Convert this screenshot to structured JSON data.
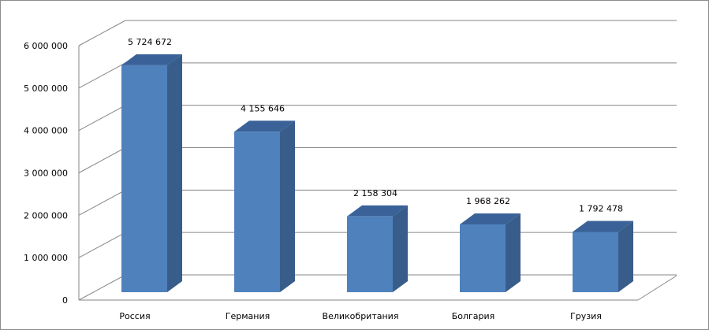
{
  "chart_data": {
    "type": "bar",
    "title": "",
    "xlabel": "",
    "ylabel": "",
    "categories": [
      "Россия",
      "Германия",
      "Великобритания",
      "Болгария",
      "Грузия"
    ],
    "values": [
      5724672,
      4155646,
      2158304,
      1968262,
      1792478
    ],
    "value_labels": [
      "5 724 672",
      "4 155 646",
      "2 158 304",
      "1 968 262",
      "1 792 478"
    ],
    "ylim": [
      0,
      6000000
    ],
    "yticks": [
      0,
      1000000,
      2000000,
      3000000,
      4000000,
      5000000,
      6000000
    ],
    "ytick_labels": [
      "0",
      "1 000 000",
      "2 000 000",
      "3 000 000",
      "4 000 000",
      "5 000 000",
      "6 000 000"
    ],
    "grid": true,
    "legend": "none",
    "style": "3d-column",
    "colors": {
      "bar_front": "#4f81bd",
      "bar_side": "#385d8a",
      "bar_top": "#3a6298",
      "grid": "#868686"
    }
  }
}
